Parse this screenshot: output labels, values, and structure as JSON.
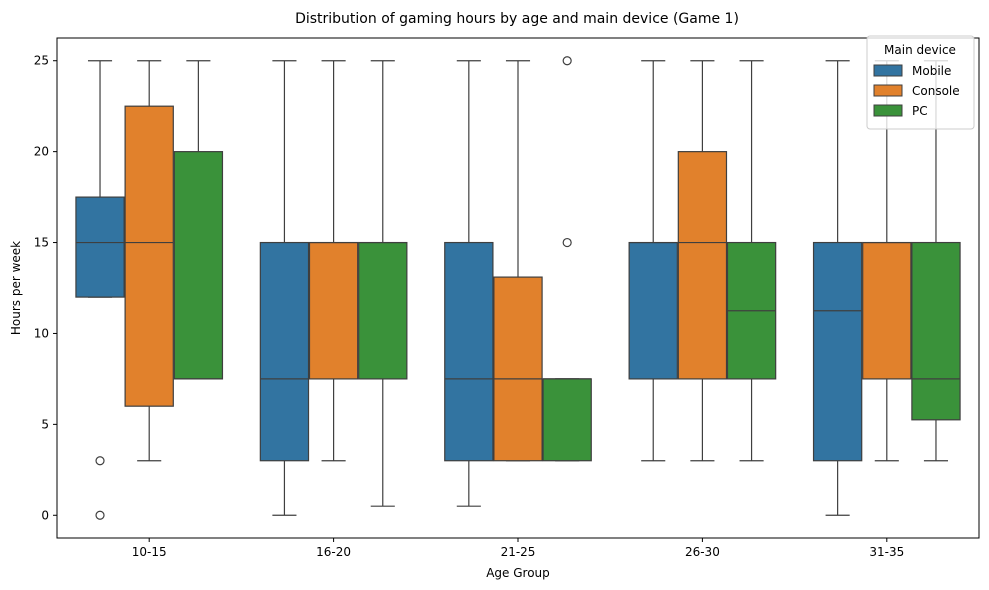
{
  "chart_data": {
    "type": "box",
    "title": "Distribution of gaming hours by age and main device (Game 1)",
    "xlabel": "Age Group",
    "ylabel": "Hours per week",
    "ylim": [
      -1.25,
      26.25
    ],
    "yticks": [
      0,
      5,
      10,
      15,
      20,
      25
    ],
    "categories": [
      "10-15",
      "16-20",
      "21-25",
      "26-30",
      "31-35"
    ],
    "grid": false,
    "legend": {
      "title": "Main device",
      "placement": "top-right"
    },
    "series": [
      {
        "name": "Mobile",
        "color": "#3274a1",
        "boxes": [
          {
            "whisker_low": 12,
            "q1": 12,
            "median": 15,
            "q3": 17.5,
            "whisker_high": 25,
            "outliers": [
              3,
              0
            ]
          },
          {
            "whisker_low": 0,
            "q1": 3,
            "median": 7.5,
            "q3": 15,
            "whisker_high": 25,
            "outliers": []
          },
          {
            "whisker_low": 0.5,
            "q1": 3,
            "median": 7.5,
            "q3": 15,
            "whisker_high": 25,
            "outliers": []
          },
          {
            "whisker_low": 3,
            "q1": 7.5,
            "median": 15,
            "q3": 15,
            "whisker_high": 25,
            "outliers": []
          },
          {
            "whisker_low": 0,
            "q1": 3,
            "median": 11.25,
            "q3": 15,
            "whisker_high": 25,
            "outliers": []
          }
        ]
      },
      {
        "name": "Console",
        "color": "#e1812c",
        "boxes": [
          {
            "whisker_low": 3,
            "q1": 6,
            "median": 15,
            "q3": 22.5,
            "whisker_high": 25,
            "outliers": []
          },
          {
            "whisker_low": 3,
            "q1": 7.5,
            "median": 15,
            "q3": 15,
            "whisker_high": 25,
            "outliers": []
          },
          {
            "whisker_low": 3,
            "q1": 3,
            "median": 7.5,
            "q3": 13.1,
            "whisker_high": 25,
            "outliers": []
          },
          {
            "whisker_low": 3,
            "q1": 7.5,
            "median": 15,
            "q3": 20,
            "whisker_high": 25,
            "outliers": []
          },
          {
            "whisker_low": 3,
            "q1": 7.5,
            "median": 15,
            "q3": 15,
            "whisker_high": 25,
            "outliers": []
          }
        ]
      },
      {
        "name": "PC",
        "color": "#3a923a",
        "boxes": [
          {
            "whisker_low": 7.5,
            "q1": 7.5,
            "median": 7.5,
            "q3": 20,
            "whisker_high": 25,
            "outliers": []
          },
          {
            "whisker_low": 0.5,
            "q1": 7.5,
            "median": 15,
            "q3": 15,
            "whisker_high": 25,
            "outliers": []
          },
          {
            "whisker_low": 3,
            "q1": 3,
            "median": 7.5,
            "q3": 7.5,
            "whisker_high": 7.5,
            "outliers": [
              25,
              15
            ]
          },
          {
            "whisker_low": 3,
            "q1": 7.5,
            "median": 11.25,
            "q3": 15,
            "whisker_high": 25,
            "outliers": []
          },
          {
            "whisker_low": 3,
            "q1": 5.25,
            "median": 7.5,
            "q3": 15,
            "whisker_high": 25,
            "outliers": []
          }
        ]
      }
    ]
  }
}
